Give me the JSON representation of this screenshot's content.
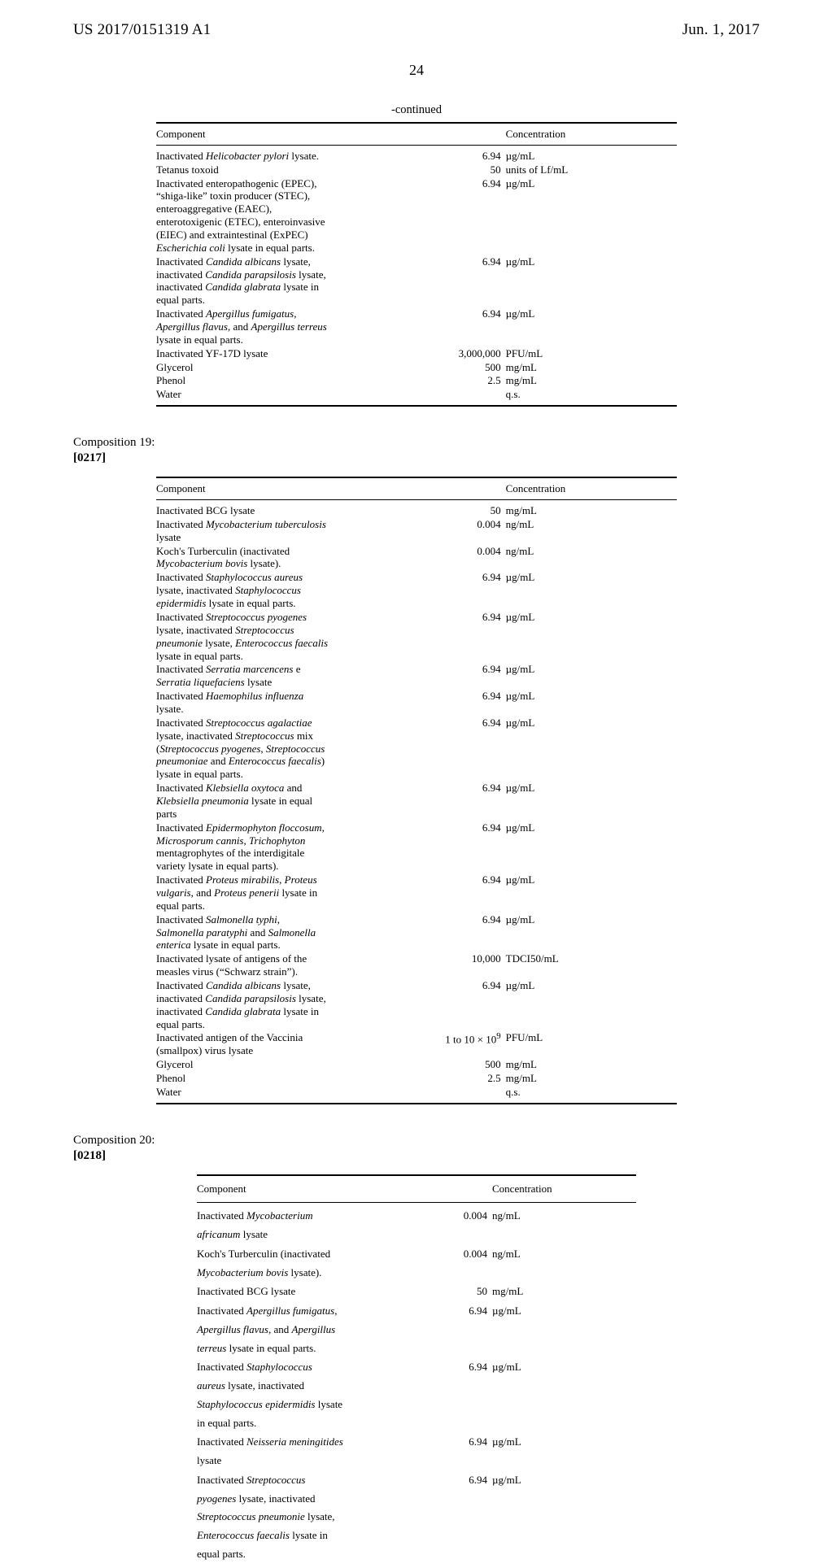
{
  "header": {
    "left": "US 2017/0151319 A1",
    "right": "Jun. 1, 2017"
  },
  "page_number": "24",
  "table1": {
    "continued_label": "-continued",
    "head_component": "Component",
    "head_concentration": "Concentration",
    "rows": [
      {
        "comp_html": "Inactivated <em>Helicobacter pylori</em> lysate.",
        "num": "6.94",
        "unit": "µg/mL"
      },
      {
        "comp_html": "Tetanus toxoid",
        "num": "50",
        "unit": "units of Lf/mL"
      },
      {
        "comp_html": "Inactivated enteropathogenic (EPEC), “shiga-like” toxin producer (STEC), enteroaggregative (EAEC), enterotoxigenic (ETEC), enteroinvasive (EIEC) and extraintestinal (ExPEC) <em>Escherichia coli</em> lysate in equal parts.",
        "num": "6.94",
        "unit": "µg/mL"
      },
      {
        "comp_html": "Inactivated <em>Candida albicans</em> lysate, inactivated <em>Candida parapsilosis</em> lysate, inactivated <em>Candida glabrata</em> lysate in equal parts.",
        "num": "6.94",
        "unit": "µg/mL"
      },
      {
        "comp_html": "Inactivated <em>Apergillus fumigatus</em>, <em>Apergillus flavus</em>, and <em>Apergillus terreus</em> lysate in equal parts.",
        "num": "6.94",
        "unit": "µg/mL"
      },
      {
        "comp_html": "Inactivated YF-17D lysate",
        "num": "3,000,000",
        "unit": "PFU/mL"
      },
      {
        "comp_html": "Glycerol",
        "num": "500",
        "unit": "mg/mL"
      },
      {
        "comp_html": "Phenol",
        "num": "2.5",
        "unit": "mg/mL"
      },
      {
        "comp_html": "Water",
        "num": "",
        "unit": "q.s."
      }
    ]
  },
  "section19": {
    "label": "Composition 19:",
    "para": "[0217]"
  },
  "table2": {
    "head_component": "Component",
    "head_concentration": "Concentration",
    "rows": [
      {
        "comp_html": "Inactivated BCG lysate",
        "num": "50",
        "unit": "mg/mL"
      },
      {
        "comp_html": "Inactivated <em>Mycobacterium tuberculosis</em> lysate",
        "num": "0.004",
        "unit": "ng/mL"
      },
      {
        "comp_html": "Koch's Turberculin (inactivated <em>Mycobacterium bovis</em> lysate).",
        "num": "0.004",
        "unit": "ng/mL"
      },
      {
        "comp_html": "Inactivated <em>Staphylococcus aureus</em> lysate, inactivated <em>Staphylococcus epidermidis</em> lysate in equal parts.",
        "num": "6.94",
        "unit": "µg/mL"
      },
      {
        "comp_html": "Inactivated <em>Streptococcus pyogenes</em> lysate, inactivated <em>Streptococcus pneumonie</em> lysate, <em>Enterococcus faecalis</em> lysate in equal parts.",
        "num": "6.94",
        "unit": "µg/mL"
      },
      {
        "comp_html": "Inactivated <em>Serratia marcencens</em> e <em>Serratia liquefaciens</em> lysate",
        "num": "6.94",
        "unit": "µg/mL"
      },
      {
        "comp_html": "Inactivated <em>Haemophilus influenza</em> lysate.",
        "num": "6.94",
        "unit": "µg/mL"
      },
      {
        "comp_html": "Inactivated <em>Streptococcus agalactiae</em> lysate, inactivated <em>Streptococcus</em> mix (<em>Streptococcus pyogenes</em>, <em>Streptococcus pneumoniae</em> and <em>Enterococcus faecalis</em>) lysate in equal parts.",
        "num": "6.94",
        "unit": "µg/mL"
      },
      {
        "comp_html": "Inactivated <em>Klebsiella oxytoca</em> and <em>Klebsiella pneumonia</em> lysate in equal parts",
        "num": "6.94",
        "unit": "µg/mL"
      },
      {
        "comp_html": "Inactivated <em>Epidermophyton floccosum</em>, <em>Microsporum cannis</em>, <em>Trichophyton</em> mentagrophytes of the interdigitale variety lysate in equal parts).",
        "num": "6.94",
        "unit": "µg/mL"
      },
      {
        "comp_html": "Inactivated <em>Proteus mirabilis</em>, <em>Proteus vulgaris</em>, and <em>Proteus penerii</em> lysate in equal parts.",
        "num": "6.94",
        "unit": "µg/mL"
      },
      {
        "comp_html": "Inactivated <em>Salmonella typhi</em>, <em>Salmonella paratyphi</em> and <em>Salmonella enterica</em> lysate in equal parts.",
        "num": "6.94",
        "unit": "µg/mL"
      },
      {
        "comp_html": "Inactivated lysate of antigens of the measles virus (“Schwarz strain”).",
        "num": "10,000",
        "unit": "TDCI50/mL"
      },
      {
        "comp_html": "Inactivated <em>Candida albicans</em> lysate, inactivated <em>Candida parapsilosis</em> lysate, inactivated <em>Candida glabrata</em> lysate in equal parts.",
        "num": "6.94",
        "unit": "µg/mL"
      },
      {
        "comp_html": "Inactivated antigen of the Vaccinia (smallpox) virus lysate",
        "num": "1 to 10 × 10<sup>9</sup>",
        "unit": "PFU/mL"
      },
      {
        "comp_html": "Glycerol",
        "num": "500",
        "unit": "mg/mL"
      },
      {
        "comp_html": "Phenol",
        "num": "2.5",
        "unit": "mg/mL"
      },
      {
        "comp_html": "Water",
        "num": "",
        "unit": "q.s."
      }
    ]
  },
  "section20": {
    "label": "Composition 20:",
    "para": "[0218]"
  },
  "table3": {
    "head_component": "Component",
    "head_concentration": "Concentration",
    "rows": [
      {
        "comp_html": "Inactivated <em>Mycobacterium africanum</em> lysate",
        "num": "0.004",
        "unit": "ng/mL"
      },
      {
        "comp_html": "Koch's Turberculin (inactivated <em>Mycobacterium bovis</em> lysate).",
        "num": "0.004",
        "unit": "ng/mL"
      },
      {
        "comp_html": "Inactivated BCG lysate",
        "num": "50",
        "unit": "mg/mL"
      },
      {
        "comp_html": "Inactivated <em>Apergillus fumigatus</em>, <em>Apergillus flavus</em>, and <em>Apergillus terreus</em> lysate in equal parts.",
        "num": "6.94",
        "unit": "µg/mL"
      },
      {
        "comp_html": "Inactivated <em>Staphylococcus aureus</em> lysate, inactivated <em>Staphylococcus epidermidis</em> lysate in equal parts.",
        "num": "6.94",
        "unit": "µg/mL"
      },
      {
        "comp_html": "Inactivated <em>Neisseria meningitides</em> lysate",
        "num": "6.94",
        "unit": "µg/mL"
      },
      {
        "comp_html": "Inactivated <em>Streptococcus pyogenes</em> lysate, inactivated <em>Streptococcus pneumonie</em> lysate, <em>Enterococcus faecalis</em> lysate in equal parts.",
        "num": "6.94",
        "unit": "µg/mL"
      }
    ]
  }
}
